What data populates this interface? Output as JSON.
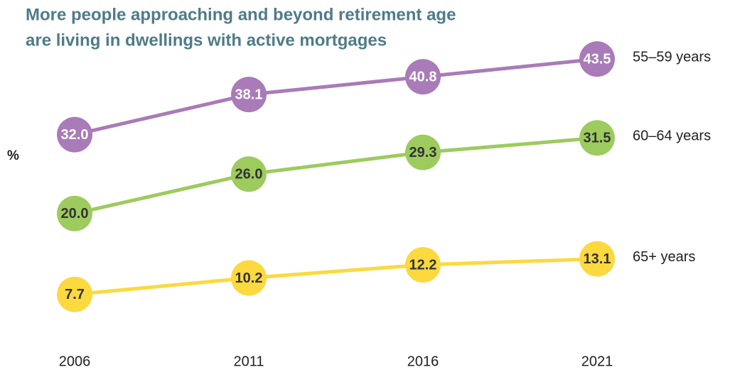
{
  "chart_data": {
    "type": "line",
    "title": [
      "More people approaching and beyond retirement age",
      "are living in dwellings with active mortgages"
    ],
    "y_label": "%",
    "categories": [
      "2006",
      "2011",
      "2016",
      "2021"
    ],
    "ylim": [
      0,
      48
    ],
    "series": [
      {
        "name": "55–59 years",
        "color": "#a97bb8",
        "values": [
          32.0,
          38.1,
          40.8,
          43.5
        ],
        "value_labels": [
          "32.0",
          "38.1",
          "40.8",
          "43.5"
        ]
      },
      {
        "name": "60–64 years",
        "color": "#9dcb5e",
        "values": [
          20.0,
          26.0,
          29.3,
          31.5
        ],
        "value_labels": [
          "20.0",
          "26.0",
          "29.3",
          "31.5"
        ]
      },
      {
        "name": "65+ years",
        "color": "#fcd93f",
        "values": [
          7.7,
          10.2,
          12.2,
          13.1
        ],
        "value_labels": [
          "7.7",
          "10.2",
          "12.2",
          "13.1"
        ]
      }
    ]
  }
}
